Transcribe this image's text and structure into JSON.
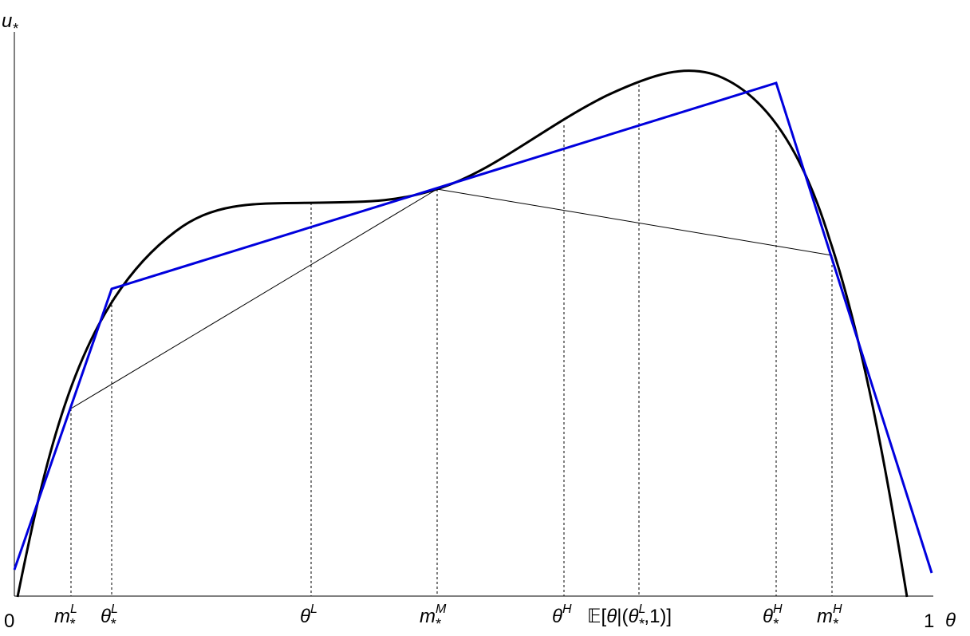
{
  "axes": {
    "x_label": "θ",
    "y_label": "u",
    "y_label_sub": "*",
    "x_origin": "0",
    "x_end": "1"
  },
  "tick_labels": [
    {
      "id": "mL",
      "base": "m",
      "sup": "L",
      "sub": "*"
    },
    {
      "id": "thetaL_star",
      "base": "θ",
      "sup": "L",
      "sub": "*"
    },
    {
      "id": "thetaL",
      "base": "θ",
      "sup": "L",
      "sub": ""
    },
    {
      "id": "mM",
      "base": "m",
      "sup": "M",
      "sub": "*"
    },
    {
      "id": "thetaH",
      "base": "θ",
      "sup": "H",
      "sub": ""
    },
    {
      "id": "expect",
      "e_symbol": "𝔼",
      "bracket_open": "[",
      "theta": "θ",
      "bar_paren": "|(",
      "inner_theta": "θ",
      "inner_sup": "L",
      "inner_sub": "*",
      "rest": ",1)]"
    },
    {
      "id": "thetaH_star",
      "base": "θ",
      "sup": "H",
      "sub": "*"
    },
    {
      "id": "mH",
      "base": "m",
      "sup": "H",
      "sub": "*"
    }
  ],
  "colors": {
    "curve": "#000000",
    "envelope": "#0000dd",
    "chord": "#000000",
    "axis": "#000000",
    "guide": "#000000"
  }
}
